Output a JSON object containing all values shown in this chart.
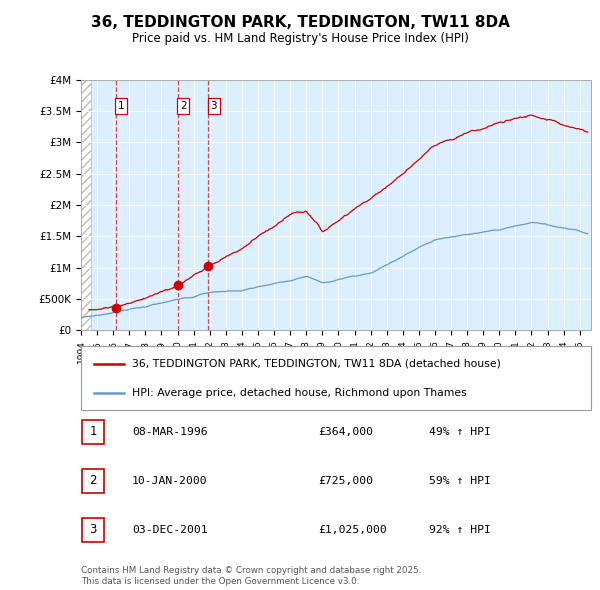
{
  "title": "36, TEDDINGTON PARK, TEDDINGTON, TW11 8DA",
  "subtitle": "Price paid vs. HM Land Registry's House Price Index (HPI)",
  "ylim": [
    0,
    4000000
  ],
  "yticks": [
    0,
    500000,
    1000000,
    1500000,
    2000000,
    2500000,
    3000000,
    3500000,
    4000000
  ],
  "ytick_labels": [
    "£0",
    "£500K",
    "£1M",
    "£1.5M",
    "£2M",
    "£2.5M",
    "£3M",
    "£3.5M",
    "£4M"
  ],
  "xlim_start": 1994.0,
  "xlim_end": 2025.7,
  "hatch_end": 1994.6,
  "red_color": "#cc0000",
  "blue_color": "#6699cc",
  "bg_color": "#ddeeff",
  "transactions": [
    {
      "label": "1",
      "date": "08-MAR-1996",
      "price": 364000,
      "pct": "49%",
      "year": 1996.18
    },
    {
      "label": "2",
      "date": "10-JAN-2000",
      "price": 725000,
      "pct": "59%",
      "year": 2000.03
    },
    {
      "label": "3",
      "date": "03-DEC-2001",
      "price": 1025000,
      "pct": "92%",
      "year": 2001.92
    }
  ],
  "legend_line1": "36, TEDDINGTON PARK, TEDDINGTON, TW11 8DA (detached house)",
  "legend_line2": "HPI: Average price, detached house, Richmond upon Thames",
  "footnote": "Contains HM Land Registry data © Crown copyright and database right 2025.\nThis data is licensed under the Open Government Licence v3.0."
}
